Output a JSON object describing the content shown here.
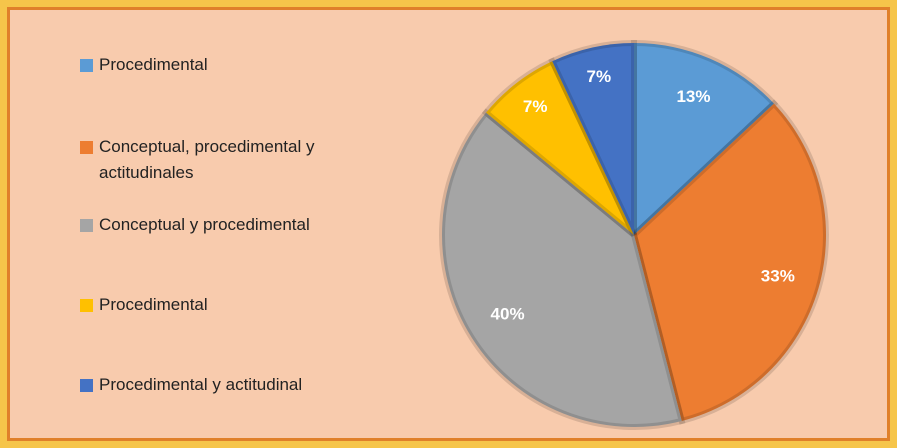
{
  "chart_data": {
    "type": "pie",
    "categories": [
      "Procedimental",
      "Conceptual, procedimental y actitudinales",
      "Conceptual y procedimental",
      "Procedimental",
      "Procedimental y actitudinal"
    ],
    "values": [
      13,
      33,
      40,
      7,
      7
    ],
    "value_labels": [
      "13%",
      "33%",
      "40%",
      "7%",
      "7%"
    ],
    "colors": [
      "#5b9bd5",
      "#ed7d31",
      "#a5a5a5",
      "#ffc000",
      "#4472c4"
    ],
    "legend": "left"
  }
}
